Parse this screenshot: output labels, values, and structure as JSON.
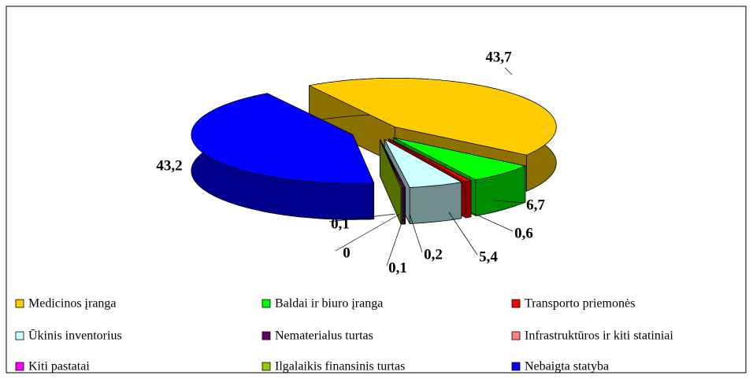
{
  "chart_data": {
    "type": "pie3d",
    "categories": [
      "Medicinos įranga",
      "Baldai ir biuro įranga",
      "Transporto priemonės",
      "Ūkinis inventorius",
      "Nematerialus turtas",
      "Infrastruktūros ir kiti statiniai",
      "Kiti pastatai",
      "Ilgalaikis finansinis turtas",
      "Nebaigta statyba"
    ],
    "values": [
      43.7,
      6.7,
      0.6,
      5.4,
      0.2,
      0.1,
      0,
      0.1,
      43.2
    ],
    "value_labels": [
      "43,7",
      "6,7",
      "0,6",
      "5,4",
      "0,2",
      "0,1",
      "0",
      "0,1",
      "43,2"
    ],
    "colors": [
      "#FFCC00",
      "#00FF00",
      "#FF0000",
      "#CCFFFF",
      "#660066",
      "#FF8080",
      "#FF00FF",
      "#99CC00",
      "#0000FF"
    ],
    "legend": "bottom"
  }
}
